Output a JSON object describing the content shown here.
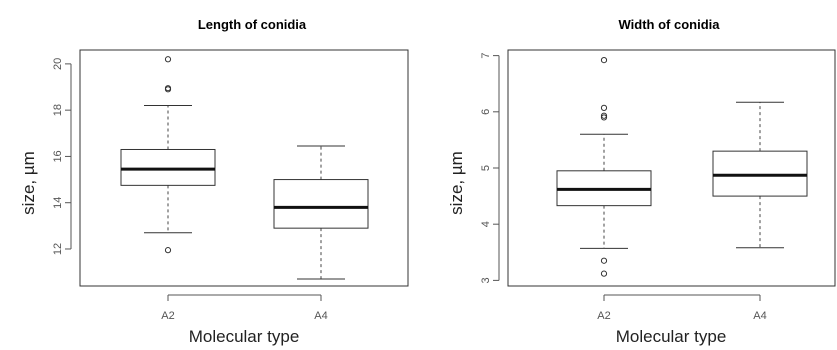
{
  "chart_data": [
    {
      "type": "box",
      "title": "Length of conidia",
      "xlabel": "Molecular type",
      "ylabel": "size, µm",
      "categories": [
        "A2",
        "A4"
      ],
      "y_ticks": [
        12,
        14,
        16,
        18,
        20
      ],
      "ylim": [
        10.4,
        20.6
      ],
      "boxes": [
        {
          "category": "A2",
          "whisker_low": 12.7,
          "q1": 14.75,
          "median": 15.45,
          "q3": 16.3,
          "whisker_high": 18.2,
          "outliers": [
            20.2,
            18.95,
            18.9,
            11.95
          ]
        },
        {
          "category": "A4",
          "whisker_low": 10.7,
          "q1": 12.9,
          "median": 13.8,
          "q3": 15.0,
          "whisker_high": 16.45,
          "outliers": []
        }
      ]
    },
    {
      "type": "box",
      "title": "Width of conidia",
      "xlabel": "Molecular type",
      "ylabel": "size, µm",
      "categories": [
        "A2",
        "A4"
      ],
      "y_ticks": [
        3,
        4,
        5,
        6,
        7
      ],
      "ylim": [
        2.9,
        7.1
      ],
      "boxes": [
        {
          "category": "A2",
          "whisker_low": 3.57,
          "q1": 4.33,
          "median": 4.62,
          "q3": 4.95,
          "whisker_high": 5.6,
          "outliers": [
            6.92,
            6.07,
            5.93,
            5.9,
            3.35,
            3.12
          ]
        },
        {
          "category": "A4",
          "whisker_low": 3.58,
          "q1": 4.5,
          "median": 4.87,
          "q3": 5.3,
          "whisker_high": 6.17,
          "outliers": []
        }
      ]
    }
  ]
}
